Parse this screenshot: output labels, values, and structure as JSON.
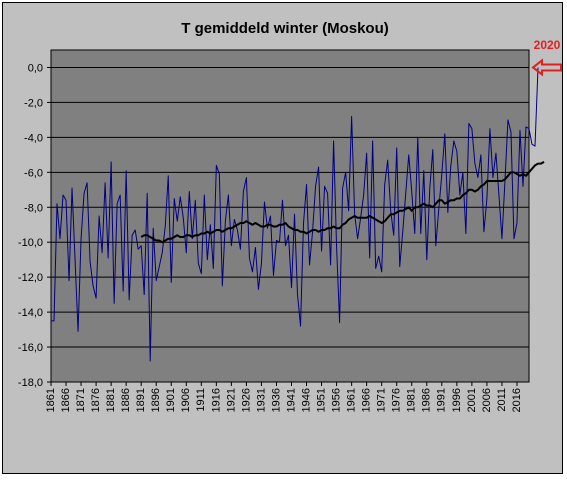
{
  "chart_data": {
    "type": "line",
    "title": "T gemiddeld winter (Moskou)",
    "xlabel": "",
    "ylabel": "",
    "xlim": [
      1861,
      2020
    ],
    "ylim": [
      -18,
      1
    ],
    "grid": true,
    "legend": "none",
    "y_ticks": [
      "0,0",
      "-2,0",
      "-4,0",
      "-6,0",
      "-8,0",
      "-10,0",
      "-12,0",
      "-14,0",
      "-16,0",
      "-18,0"
    ],
    "y_tick_values": [
      0,
      -2,
      -4,
      -6,
      -8,
      -10,
      -12,
      -14,
      -16,
      -18
    ],
    "x_ticks": [
      "1861",
      "1866",
      "1871",
      "1876",
      "1881",
      "1886",
      "1891",
      "1896",
      "1901",
      "1906",
      "1911",
      "1916",
      "1921",
      "1926",
      "1931",
      "1936",
      "1941",
      "1946",
      "1951",
      "1956",
      "1961",
      "1966",
      "1971",
      "1976",
      "1981",
      "1986",
      "1991",
      "1996",
      "2001",
      "2006",
      "2011",
      "2016"
    ],
    "annotation": {
      "text": "2020",
      "x": 2020,
      "y": 0.0
    },
    "series": [
      {
        "color": "#000080",
        "x_start": 1861,
        "values": [
          -14.5,
          -14.5,
          -7.8,
          -9.8,
          -7.3,
          -7.6,
          -12.2,
          -6.9,
          -11.0,
          -15.1,
          -9.8,
          -7.2,
          -6.6,
          -11.1,
          -12.5,
          -13.2,
          -8.5,
          -10.6,
          -6.6,
          -10.9,
          -5.4,
          -13.5,
          -7.8,
          -7.3,
          -12.8,
          -5.9,
          -13.3,
          -9.6,
          -9.3,
          -10.4,
          -10.2,
          -13.0,
          -7.2,
          -16.8,
          -9.2,
          -12.2,
          -11.4,
          -10.6,
          -9.1,
          -6.2,
          -12.3,
          -7.5,
          -8.8,
          -7.4,
          -8.6,
          -10.6,
          -7.1,
          -9.8,
          -7.6,
          -11.2,
          -11.8,
          -7.3,
          -11.0,
          -9.0,
          -11.5,
          -5.6,
          -6.1,
          -12.5,
          -8.8,
          -7.3,
          -10.2,
          -8.7,
          -9.3,
          -10.4,
          -7.1,
          -6.3,
          -10.9,
          -11.7,
          -10.3,
          -12.7,
          -11.2,
          -7.7,
          -9.2,
          -8.5,
          -11.9,
          -9.9,
          -10.0,
          -7.6,
          -10.2,
          -9.6,
          -12.6,
          -8.4,
          -13.0,
          -14.8,
          -8.9,
          -6.7,
          -11.3,
          -9.4,
          -6.8,
          -5.7,
          -10.5,
          -6.8,
          -7.2,
          -11.3,
          -4.2,
          -10.3,
          -14.6,
          -6.9,
          -6.0,
          -8.2,
          -2.8,
          -8.4,
          -9.8,
          -8.6,
          -7.3,
          -4.9,
          -10.9,
          -4.2,
          -11.5,
          -10.8,
          -11.7,
          -6.7,
          -5.3,
          -8.2,
          -9.6,
          -4.6,
          -11.4,
          -9.4,
          -7.2,
          -5.0,
          -7.1,
          -9.5,
          -4.0,
          -9.5,
          -5.9,
          -11.0,
          -6.9,
          -4.7,
          -10.2,
          -8.1,
          -6.1,
          -3.8,
          -8.3,
          -5.6,
          -4.2,
          -4.8,
          -7.3,
          -6.0,
          -9.5,
          -3.2,
          -3.5,
          -5.5,
          -6.3,
          -5.0,
          -9.4,
          -7.5,
          -3.5,
          -6.3,
          -4.9,
          -7.3,
          -9.8,
          -6.5,
          -3.0,
          -3.7,
          -9.8,
          -8.9,
          -3.6,
          -6.8,
          -3.4,
          -3.5,
          -4.4,
          -4.5,
          0.0
        ]
      },
      {
        "color": "#000000",
        "x_start": 1891,
        "values": [
          -9.7,
          -9.6,
          -9.6,
          -9.7,
          -9.8,
          -9.9,
          -9.9,
          -10.0,
          -9.9,
          -9.8,
          -9.8,
          -9.7,
          -9.6,
          -9.7,
          -9.7,
          -9.6,
          -9.6,
          -9.7,
          -9.6,
          -9.6,
          -9.5,
          -9.5,
          -9.4,
          -9.5,
          -9.4,
          -9.3,
          -9.3,
          -9.4,
          -9.3,
          -9.2,
          -9.2,
          -9.1,
          -9.0,
          -8.9,
          -8.9,
          -8.8,
          -8.9,
          -9.0,
          -8.9,
          -9.0,
          -9.1,
          -9.1,
          -9.0,
          -9.0,
          -9.1,
          -9.1,
          -9.0,
          -9.0,
          -8.9,
          -9.1,
          -9.2,
          -9.3,
          -9.3,
          -9.4,
          -9.4,
          -9.5,
          -9.4,
          -9.3,
          -9.3,
          -9.4,
          -9.3,
          -9.3,
          -9.2,
          -9.2,
          -9.1,
          -9.2,
          -9.2,
          -9.0,
          -8.9,
          -8.7,
          -8.6,
          -8.5,
          -8.6,
          -8.6,
          -8.6,
          -8.6,
          -8.5,
          -8.6,
          -8.7,
          -8.8,
          -8.9,
          -8.8,
          -8.6,
          -8.4,
          -8.4,
          -8.3,
          -8.2,
          -8.2,
          -8.1,
          -8.0,
          -8.2,
          -8.0,
          -8.0,
          -7.9,
          -7.8,
          -7.9,
          -7.9,
          -8.0,
          -7.8,
          -7.6,
          -7.6,
          -7.8,
          -7.7,
          -7.6,
          -7.6,
          -7.5,
          -7.5,
          -7.3,
          -7.2,
          -7.0,
          -7.0,
          -7.1,
          -7.0,
          -6.8,
          -6.7,
          -6.5,
          -6.5,
          -6.5,
          -6.5,
          -6.5,
          -6.5,
          -6.4,
          -6.2,
          -6.0,
          -6.0,
          -6.1,
          -6.2,
          -6.1,
          -6.2,
          -6.0,
          -5.8,
          -5.6,
          -5.5,
          -5.5,
          -5.4
        ]
      }
    ]
  }
}
